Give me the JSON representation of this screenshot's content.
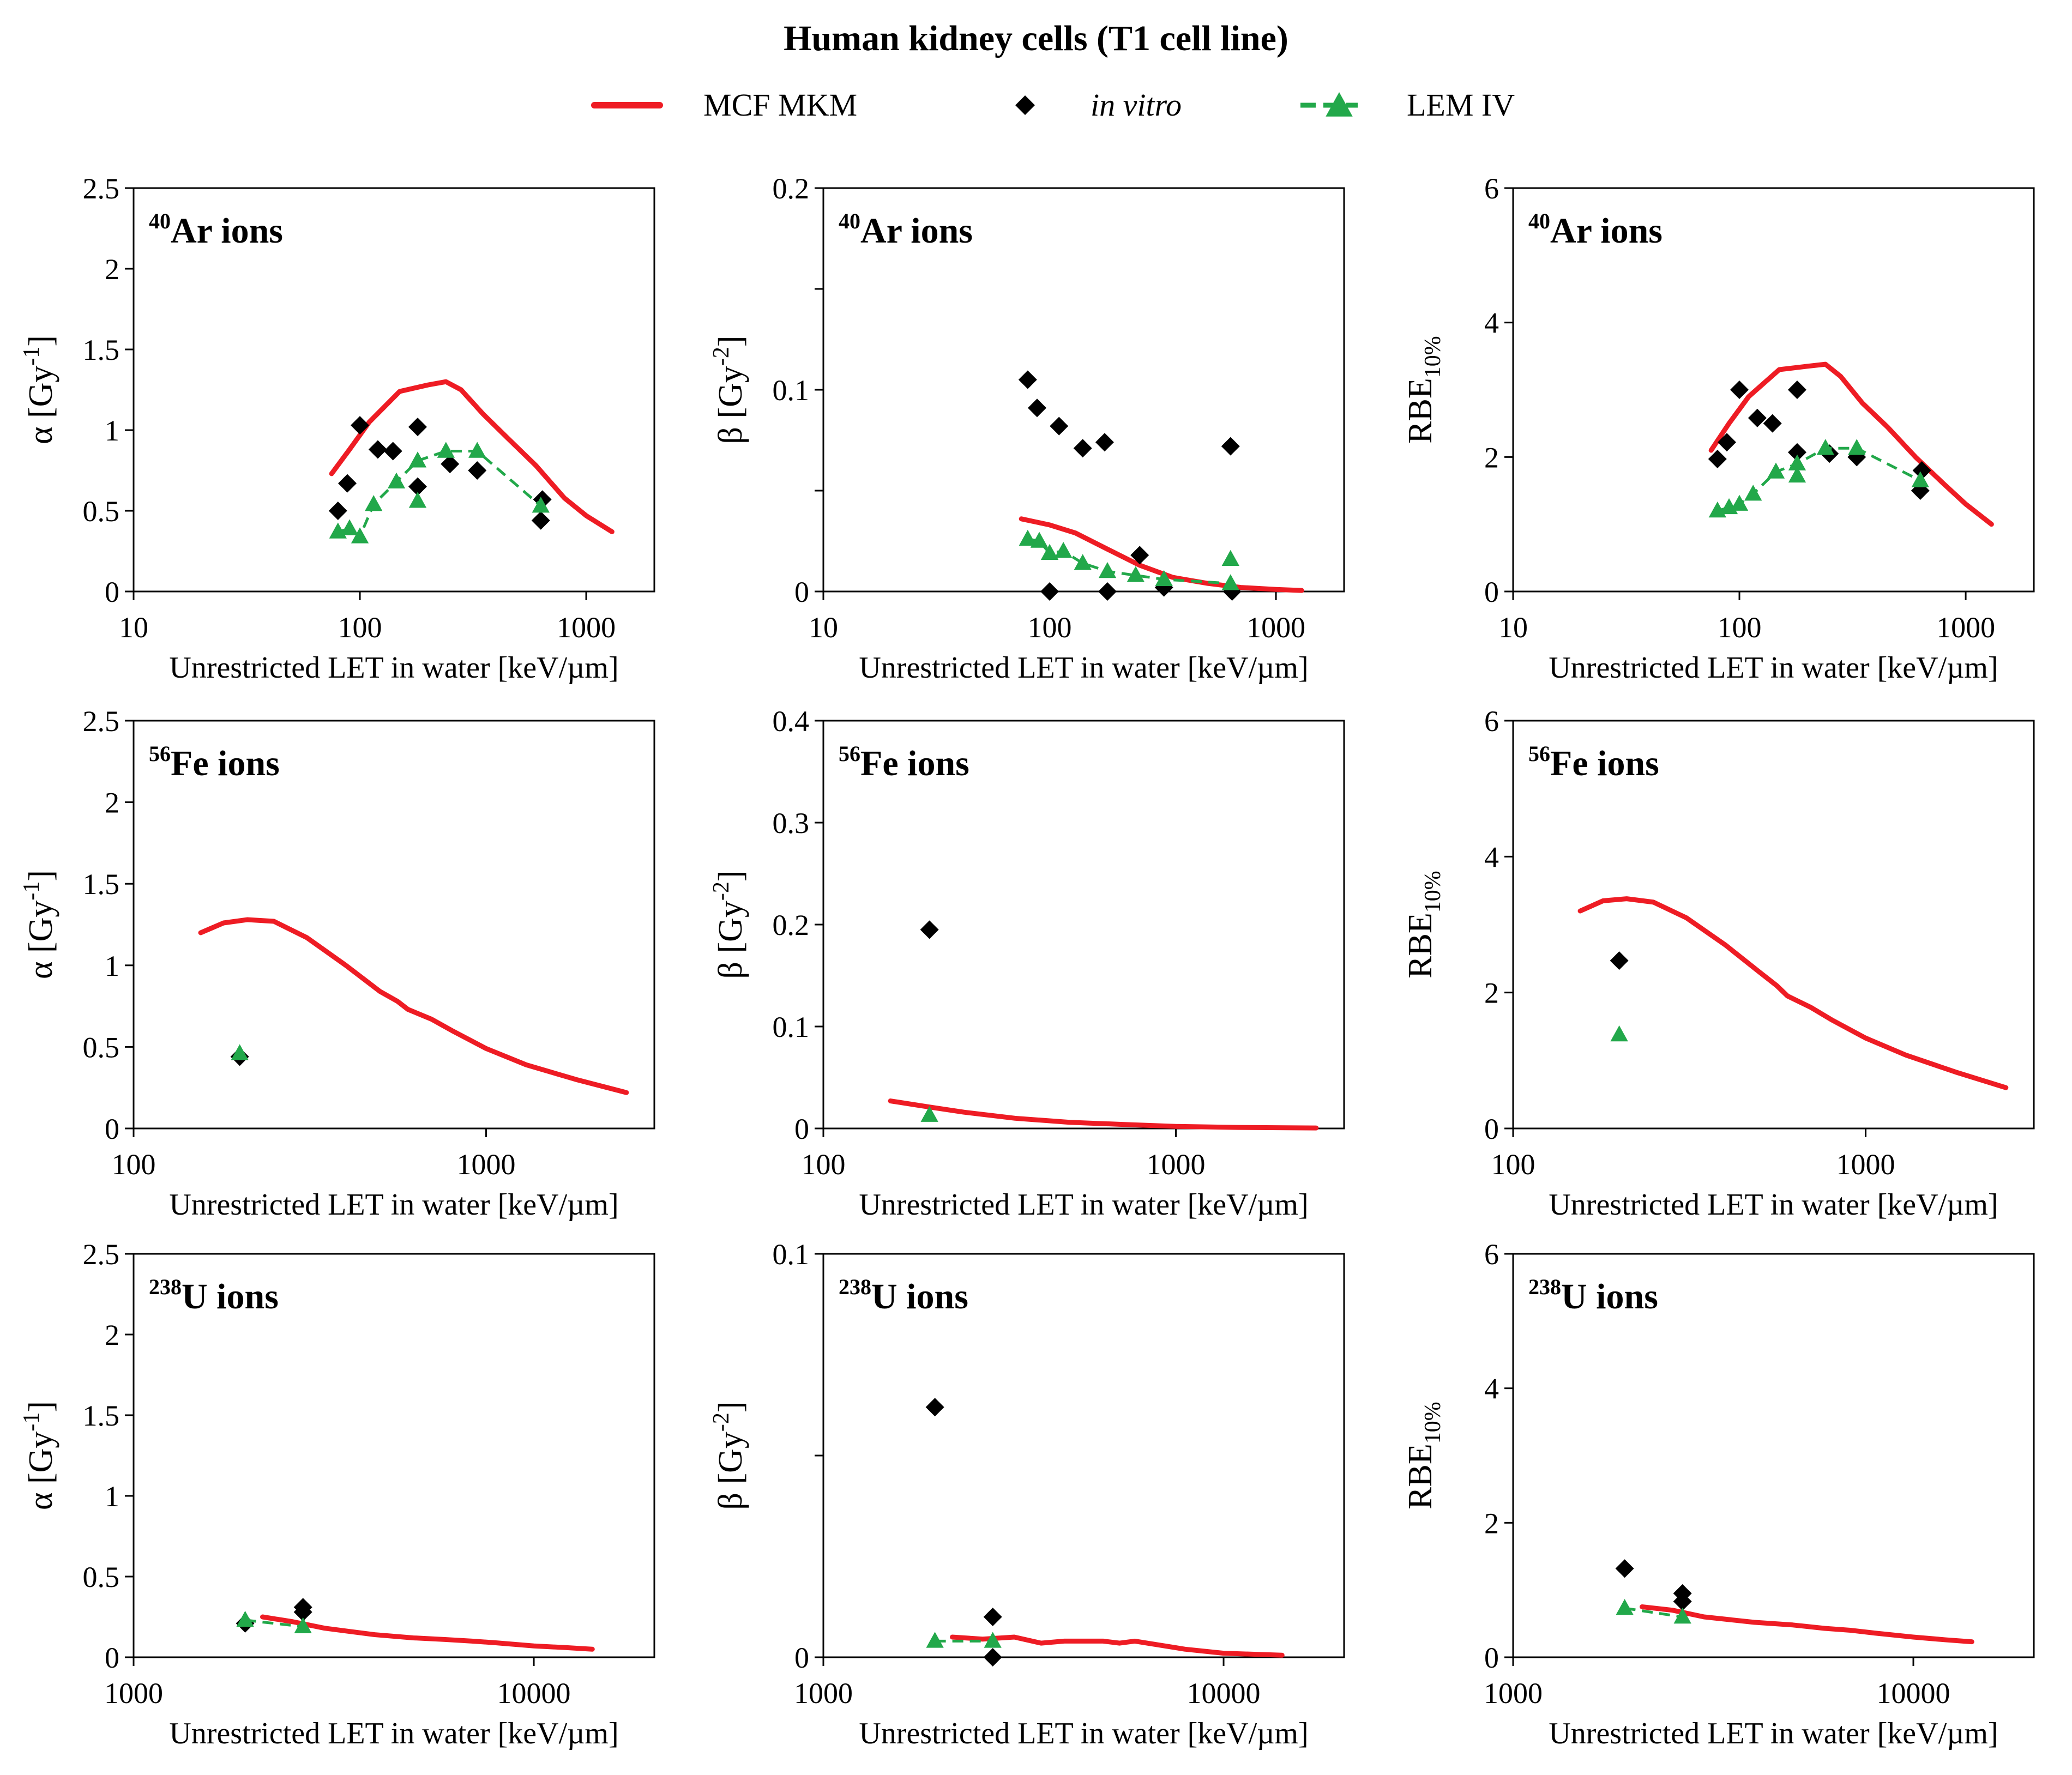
{
  "figure": {
    "title": "Human kidney cells (T1 cell line)",
    "legend": {
      "entries": [
        {
          "label": "MCF MKM",
          "style": "red-solid-line",
          "italic": false
        },
        {
          "label": "in vitro",
          "style": "black-diamond",
          "italic": true
        },
        {
          "label": "LEM IV",
          "style": "green-dashed-triangle",
          "italic": false
        }
      ]
    },
    "colors": {
      "mcf": "#ee1c24",
      "invitro": "#000000",
      "lem": "#22a84a"
    }
  },
  "chart_data": [
    {
      "id": "ar-alpha",
      "type": "line",
      "row": 0,
      "col": 0,
      "label_mass": "40",
      "label_ion": "Ar ions",
      "ylabel": "α [Gy-1]",
      "ylabel_main": "α [Gy",
      "ylabel_sup": "-1",
      "ylabel_close": "]",
      "xlabel": "Unrestricted LET in water [keV/µm]",
      "xscale": "log",
      "xlim": [
        10,
        2000
      ],
      "ylim": [
        0,
        2.5
      ],
      "xticks": [
        10,
        100,
        1000
      ],
      "xtick_labels": [
        "10",
        "100",
        "1000"
      ],
      "yticks": [
        0,
        0.5,
        1,
        1.5,
        2,
        2.5
      ],
      "ytick_labels": [
        "0",
        "0.5",
        "1",
        "1.5",
        "2",
        "2.5"
      ],
      "series": [
        {
          "name": "MCF MKM",
          "kind": "line",
          "x": [
            75,
            90,
            110,
            150,
            200,
            240,
            280,
            350,
            450,
            600,
            800,
            1000,
            1300
          ],
          "y": [
            0.73,
            0.88,
            1.05,
            1.24,
            1.28,
            1.3,
            1.25,
            1.1,
            0.95,
            0.78,
            0.58,
            0.47,
            0.37
          ]
        },
        {
          "name": "in vitro",
          "kind": "diamond",
          "x": [
            80,
            88,
            100,
            120,
            140,
            180,
            180,
            250,
            330,
            630,
            640
          ],
          "y": [
            0.5,
            0.67,
            1.03,
            0.88,
            0.87,
            0.65,
            1.02,
            0.79,
            0.75,
            0.44,
            0.57
          ]
        },
        {
          "name": "LEM IV",
          "kind": "triangle-dashed",
          "x": [
            80,
            90,
            100,
            115,
            145,
            180,
            240,
            330,
            630
          ],
          "y": [
            0.37,
            0.39,
            0.34,
            0.54,
            0.68,
            0.81,
            0.87,
            0.87,
            0.53
          ]
        },
        {
          "name": "LEM IV extra",
          "kind": "triangle",
          "x": [
            180
          ],
          "y": [
            0.56
          ]
        }
      ]
    },
    {
      "id": "ar-beta",
      "type": "line",
      "row": 0,
      "col": 1,
      "label_mass": "40",
      "label_ion": "Ar ions",
      "ylabel": "β [Gy-2]",
      "ylabel_main": "β [Gy",
      "ylabel_sup": "-2",
      "ylabel_close": "]",
      "xlabel": "Unrestricted LET in water [keV/µm]",
      "xscale": "log",
      "xlim": [
        10,
        2000
      ],
      "ylim": [
        0,
        0.2
      ],
      "xticks": [
        10,
        100,
        1000
      ],
      "xtick_labels": [
        "10",
        "100",
        "1000"
      ],
      "yticks": [
        0,
        0.1,
        0.2
      ],
      "ytick_labels": [
        "0",
        "0.1",
        "0.2"
      ],
      "yminor": [
        0.05,
        0.15
      ],
      "series": [
        {
          "name": "MCF MKM",
          "kind": "line",
          "x": [
            75,
            100,
            130,
            180,
            250,
            350,
            500,
            700,
            1000,
            1300
          ],
          "y": [
            0.036,
            0.033,
            0.029,
            0.021,
            0.013,
            0.007,
            0.004,
            0.002,
            0.001,
            0.0005
          ]
        },
        {
          "name": "in vitro",
          "kind": "diamond",
          "x": [
            80,
            88,
            100,
            110,
            140,
            175,
            180,
            250,
            320,
            630,
            640
          ],
          "y": [
            0.105,
            0.091,
            0.0,
            0.082,
            0.071,
            0.074,
            0.0,
            0.018,
            0.002,
            0.072,
            0.0
          ]
        },
        {
          "name": "LEM IV",
          "kind": "triangle-dashed",
          "x": [
            80,
            90,
            100,
            115,
            140,
            180,
            240,
            320,
            630
          ],
          "y": [
            0.026,
            0.025,
            0.019,
            0.02,
            0.014,
            0.01,
            0.008,
            0.006,
            0.004
          ]
        },
        {
          "name": "LEM IV extra",
          "kind": "triangle",
          "x": [
            630
          ],
          "y": [
            0.016
          ]
        }
      ]
    },
    {
      "id": "ar-rbe",
      "type": "line",
      "row": 0,
      "col": 2,
      "label_mass": "40",
      "label_ion": "Ar ions",
      "ylabel": "RBE10%",
      "ylabel_main": "RBE",
      "ylabel_sub": "10%",
      "xlabel": "Unrestricted LET in water [keV/µm]",
      "xscale": "log",
      "xlim": [
        10,
        2000
      ],
      "ylim": [
        0,
        6
      ],
      "xticks": [
        10,
        100,
        1000
      ],
      "xtick_labels": [
        "10",
        "100",
        "1000"
      ],
      "yticks": [
        0,
        2,
        4,
        6
      ],
      "ytick_labels": [
        "0",
        "2",
        "4",
        "6"
      ],
      "series": [
        {
          "name": "MCF MKM",
          "kind": "line",
          "x": [
            75,
            90,
            110,
            150,
            200,
            240,
            280,
            350,
            450,
            600,
            800,
            1000,
            1300
          ],
          "y": [
            2.1,
            2.5,
            2.9,
            3.3,
            3.35,
            3.38,
            3.2,
            2.8,
            2.45,
            2.0,
            1.6,
            1.3,
            1.0
          ]
        },
        {
          "name": "in vitro",
          "kind": "diamond",
          "x": [
            80,
            88,
            100,
            120,
            140,
            180,
            180,
            250,
            330,
            630,
            640
          ],
          "y": [
            1.97,
            2.22,
            3.0,
            2.58,
            2.5,
            3.0,
            2.07,
            2.05,
            2.0,
            1.5,
            1.8
          ]
        },
        {
          "name": "LEM IV",
          "kind": "triangle-dashed",
          "x": [
            80,
            90,
            100,
            115,
            145,
            180,
            240,
            330,
            630
          ],
          "y": [
            1.2,
            1.25,
            1.3,
            1.45,
            1.78,
            1.9,
            2.13,
            2.13,
            1.65
          ]
        },
        {
          "name": "LEM IV extra",
          "kind": "triangle",
          "x": [
            180
          ],
          "y": [
            1.72
          ]
        }
      ]
    },
    {
      "id": "fe-alpha",
      "type": "line",
      "row": 1,
      "col": 0,
      "label_mass": "56",
      "label_ion": "Fe ions",
      "ylabel": "α [Gy-1]",
      "ylabel_main": "α [Gy",
      "ylabel_sup": "-1",
      "ylabel_close": "]",
      "xlabel": "Unrestricted LET in water [keV/µm]",
      "xscale": "log",
      "xlim": [
        100,
        3000
      ],
      "ylim": [
        0,
        2.5
      ],
      "xticks": [
        100,
        1000
      ],
      "xtick_labels": [
        "100",
        "1000"
      ],
      "yticks": [
        0,
        0.5,
        1,
        1.5,
        2,
        2.5
      ],
      "ytick_labels": [
        "0",
        "0.5",
        "1",
        "1.5",
        "2",
        "2.5"
      ],
      "series": [
        {
          "name": "MCF MKM",
          "kind": "line",
          "x": [
            155,
            180,
            210,
            250,
            310,
            400,
            500,
            560,
            600,
            700,
            800,
            1000,
            1300,
            1800,
            2500
          ],
          "y": [
            1.2,
            1.26,
            1.28,
            1.27,
            1.17,
            1.0,
            0.84,
            0.78,
            0.73,
            0.67,
            0.6,
            0.49,
            0.39,
            0.3,
            0.22
          ]
        },
        {
          "name": "in vitro",
          "kind": "diamond",
          "x": [
            200
          ],
          "y": [
            0.44
          ]
        },
        {
          "name": "LEM IV",
          "kind": "triangle",
          "x": [
            200
          ],
          "y": [
            0.46
          ]
        }
      ]
    },
    {
      "id": "fe-beta",
      "type": "line",
      "row": 1,
      "col": 1,
      "label_mass": "56",
      "label_ion": "Fe ions",
      "ylabel": "β [Gy-2]",
      "ylabel_main": "β [Gy",
      "ylabel_sup": "-2",
      "ylabel_close": "]",
      "xlabel": "Unrestricted LET in water [keV/µm]",
      "xscale": "log",
      "xlim": [
        100,
        3000
      ],
      "ylim": [
        0,
        0.4
      ],
      "xticks": [
        100,
        1000
      ],
      "xtick_labels": [
        "100",
        "1000"
      ],
      "yticks": [
        0,
        0.1,
        0.2,
        0.3,
        0.4
      ],
      "ytick_labels": [
        "0",
        "0.1",
        "0.2",
        "0.3",
        "0.4"
      ],
      "series": [
        {
          "name": "MCF MKM",
          "kind": "line",
          "x": [
            155,
            200,
            250,
            350,
            500,
            700,
            1000,
            1500,
            2500
          ],
          "y": [
            0.027,
            0.021,
            0.016,
            0.01,
            0.006,
            0.004,
            0.002,
            0.001,
            0.0005
          ]
        },
        {
          "name": "in vitro",
          "kind": "diamond",
          "x": [
            200
          ],
          "y": [
            0.195
          ]
        },
        {
          "name": "LEM IV",
          "kind": "triangle",
          "x": [
            200
          ],
          "y": [
            0.013
          ]
        }
      ]
    },
    {
      "id": "fe-rbe",
      "type": "line",
      "row": 1,
      "col": 2,
      "label_mass": "56",
      "label_ion": "Fe ions",
      "ylabel": "RBE10%",
      "ylabel_main": "RBE",
      "ylabel_sub": "10%",
      "xlabel": "Unrestricted LET in water [keV/µm]",
      "xscale": "log",
      "xlim": [
        100,
        3000
      ],
      "ylim": [
        0,
        6
      ],
      "xticks": [
        100,
        1000
      ],
      "xtick_labels": [
        "100",
        "1000"
      ],
      "yticks": [
        0,
        2,
        4,
        6
      ],
      "ytick_labels": [
        "0",
        "2",
        "4",
        "6"
      ],
      "series": [
        {
          "name": "MCF MKM",
          "kind": "line",
          "x": [
            155,
            180,
            210,
            250,
            310,
            400,
            500,
            560,
            600,
            700,
            800,
            1000,
            1300,
            1800,
            2500
          ],
          "y": [
            3.2,
            3.35,
            3.38,
            3.33,
            3.1,
            2.7,
            2.3,
            2.1,
            1.95,
            1.78,
            1.6,
            1.33,
            1.08,
            0.83,
            0.6
          ]
        },
        {
          "name": "in vitro",
          "kind": "diamond",
          "x": [
            200
          ],
          "y": [
            2.47
          ]
        },
        {
          "name": "LEM IV",
          "kind": "triangle",
          "x": [
            200
          ],
          "y": [
            1.38
          ]
        }
      ]
    },
    {
      "id": "u-alpha",
      "type": "line",
      "row": 2,
      "col": 0,
      "label_mass": "238",
      "label_ion": "U ions",
      "ylabel": "α [Gy-1]",
      "ylabel_main": "α [Gy",
      "ylabel_sup": "-1",
      "ylabel_close": "]",
      "xlabel": "Unrestricted LET in water [keV/µm]",
      "xscale": "log",
      "xlim": [
        1000,
        20000
      ],
      "ylim": [
        0,
        2.5
      ],
      "xticks": [
        1000,
        10000
      ],
      "xtick_labels": [
        "1000",
        "10000"
      ],
      "yticks": [
        0,
        0.5,
        1,
        1.5,
        2,
        2.5
      ],
      "ytick_labels": [
        "0",
        "0.5",
        "1",
        "1.5",
        "2",
        "2.5"
      ],
      "series": [
        {
          "name": "MCF MKM",
          "kind": "line",
          "x": [
            2100,
            2500,
            3000,
            4000,
            5000,
            6000,
            7000,
            8000,
            10000,
            12000,
            14000
          ],
          "y": [
            0.25,
            0.22,
            0.18,
            0.14,
            0.12,
            0.11,
            0.1,
            0.09,
            0.07,
            0.06,
            0.05
          ]
        },
        {
          "name": "in vitro",
          "kind": "diamond",
          "x": [
            1900,
            2650,
            2650
          ],
          "y": [
            0.21,
            0.28,
            0.31
          ]
        },
        {
          "name": "LEM IV",
          "kind": "triangle-dashed",
          "x": [
            1900,
            2650
          ],
          "y": [
            0.23,
            0.19
          ]
        }
      ]
    },
    {
      "id": "u-beta",
      "type": "line",
      "row": 2,
      "col": 1,
      "label_mass": "238",
      "label_ion": "U ions",
      "ylabel": "β [Gy-2]",
      "ylabel_main": "β [Gy",
      "ylabel_sup": "-2",
      "ylabel_close": "]",
      "xlabel": "Unrestricted LET in water [keV/µm]",
      "xscale": "log",
      "xlim": [
        1000,
        20000
      ],
      "ylim": [
        0,
        0.1
      ],
      "xticks": [
        1000,
        10000
      ],
      "xtick_labels": [
        "1000",
        "10000"
      ],
      "yticks": [
        0,
        0.1
      ],
      "ytick_labels": [
        "0",
        "0.1"
      ],
      "yminor": [
        0.05
      ],
      "series": [
        {
          "name": "MCF MKM",
          "kind": "line",
          "x": [
            2100,
            2500,
            3000,
            3500,
            4000,
            5000,
            5500,
            6000,
            8000,
            10000,
            14000
          ],
          "y": [
            0.005,
            0.0045,
            0.005,
            0.0035,
            0.004,
            0.004,
            0.0035,
            0.004,
            0.002,
            0.001,
            0.0005
          ]
        },
        {
          "name": "in vitro",
          "kind": "diamond",
          "x": [
            1900,
            2650,
            2650
          ],
          "y": [
            0.062,
            0.01,
            0.0
          ]
        },
        {
          "name": "LEM IV",
          "kind": "triangle-dashed",
          "x": [
            1900,
            2650
          ],
          "y": [
            0.004,
            0.004
          ]
        }
      ]
    },
    {
      "id": "u-rbe",
      "type": "line",
      "row": 2,
      "col": 2,
      "label_mass": "238",
      "label_ion": "U ions",
      "ylabel": "RBE10%",
      "ylabel_main": "RBE",
      "ylabel_sub": "10%",
      "xlabel": "Unrestricted LET in water [keV/µm]",
      "xscale": "log",
      "xlim": [
        1000,
        20000
      ],
      "ylim": [
        0,
        6
      ],
      "xticks": [
        1000,
        10000
      ],
      "xtick_labels": [
        "1000",
        "10000"
      ],
      "yticks": [
        0,
        2,
        4,
        6
      ],
      "ytick_labels": [
        "0",
        "2",
        "4",
        "6"
      ],
      "series": [
        {
          "name": "MCF MKM",
          "kind": "line",
          "x": [
            2100,
            2500,
            3000,
            4000,
            5000,
            6000,
            7000,
            8000,
            10000,
            12000,
            14000
          ],
          "y": [
            0.75,
            0.7,
            0.6,
            0.52,
            0.48,
            0.43,
            0.4,
            0.36,
            0.3,
            0.26,
            0.23
          ]
        },
        {
          "name": "in vitro",
          "kind": "diamond",
          "x": [
            1900,
            2650,
            2650
          ],
          "y": [
            1.32,
            0.95,
            0.83
          ]
        },
        {
          "name": "LEM IV",
          "kind": "triangle-dashed",
          "x": [
            1900,
            2650
          ],
          "y": [
            0.73,
            0.6
          ]
        }
      ]
    }
  ]
}
